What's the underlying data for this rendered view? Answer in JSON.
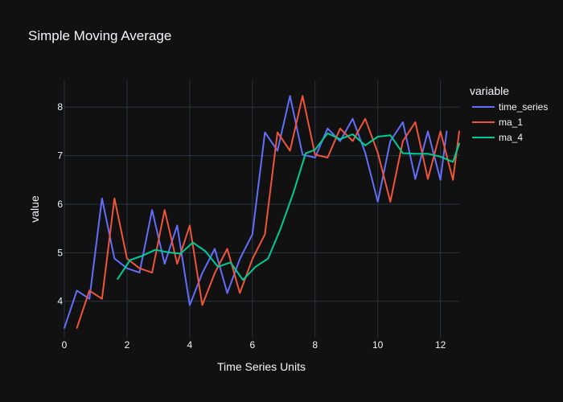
{
  "chart_data": {
    "type": "line",
    "title": "Simple Moving Average",
    "xlabel": "Time Series Units",
    "ylabel": "value",
    "xlim": [
      0,
      12.6
    ],
    "ylim": [
      3.25,
      8.55
    ],
    "xticks": [
      0,
      2,
      4,
      6,
      8,
      10,
      12
    ],
    "yticks": [
      4,
      5,
      6,
      7,
      8
    ],
    "grid": true,
    "legend_title": "variable",
    "legend_position": "top-right",
    "series": [
      {
        "name": "time_series",
        "color": "#636efa",
        "x": [
          0,
          0.4,
          0.8,
          1.2,
          1.6,
          2.0,
          2.4,
          2.8,
          3.2,
          3.6,
          4.0,
          4.4,
          4.8,
          5.2,
          5.6,
          6.0,
          6.4,
          6.8,
          7.2,
          7.6,
          8.0,
          8.4,
          8.8,
          9.2,
          9.6,
          10.0,
          10.4,
          10.8,
          11.2,
          11.6,
          12.0,
          12.2
        ],
        "y": [
          3.45,
          4.22,
          4.05,
          6.12,
          4.88,
          4.68,
          4.59,
          5.88,
          4.77,
          5.56,
          3.92,
          4.58,
          5.08,
          4.17,
          4.87,
          5.38,
          7.48,
          7.1,
          8.23,
          7.02,
          6.96,
          7.56,
          7.3,
          7.76,
          7.06,
          6.05,
          7.3,
          7.69,
          6.52,
          7.5,
          6.5,
          7.5
        ]
      },
      {
        "name": "ma_1",
        "color": "#ef553b",
        "x": [
          0.4,
          0.8,
          1.2,
          1.6,
          2.0,
          2.4,
          2.8,
          3.2,
          3.6,
          4.0,
          4.4,
          4.8,
          5.2,
          5.6,
          6.0,
          6.4,
          6.8,
          7.2,
          7.6,
          8.0,
          8.4,
          8.8,
          9.2,
          9.6,
          10.0,
          10.4,
          10.8,
          11.2,
          11.6,
          12.0,
          12.4,
          12.6
        ],
        "y": [
          3.45,
          4.22,
          4.05,
          6.12,
          4.88,
          4.68,
          4.59,
          5.88,
          4.77,
          5.56,
          3.92,
          4.58,
          5.08,
          4.17,
          4.87,
          5.38,
          7.48,
          7.1,
          8.23,
          7.02,
          6.96,
          7.56,
          7.3,
          7.76,
          7.06,
          6.05,
          7.3,
          7.69,
          6.52,
          7.5,
          6.5,
          7.5
        ]
      },
      {
        "name": "ma_4",
        "color": "#00cc96",
        "x": [
          1.7,
          2.1,
          2.5,
          2.9,
          3.3,
          3.7,
          4.1,
          4.5,
          4.9,
          5.3,
          5.7,
          6.1,
          6.5,
          6.9,
          7.3,
          7.7,
          8.0,
          8.4,
          8.8,
          9.2,
          9.6,
          10.0,
          10.4,
          10.8,
          11.2,
          11.6,
          12.0,
          12.4,
          12.6
        ],
        "y": [
          4.46,
          4.85,
          4.94,
          5.06,
          5.01,
          4.98,
          5.21,
          5.03,
          4.71,
          4.8,
          4.44,
          4.71,
          4.88,
          5.5,
          6.22,
          7.05,
          7.12,
          7.46,
          7.34,
          7.44,
          7.21,
          7.39,
          7.42,
          7.05,
          7.04,
          7.04,
          6.98,
          6.87,
          7.25
        ]
      }
    ]
  }
}
